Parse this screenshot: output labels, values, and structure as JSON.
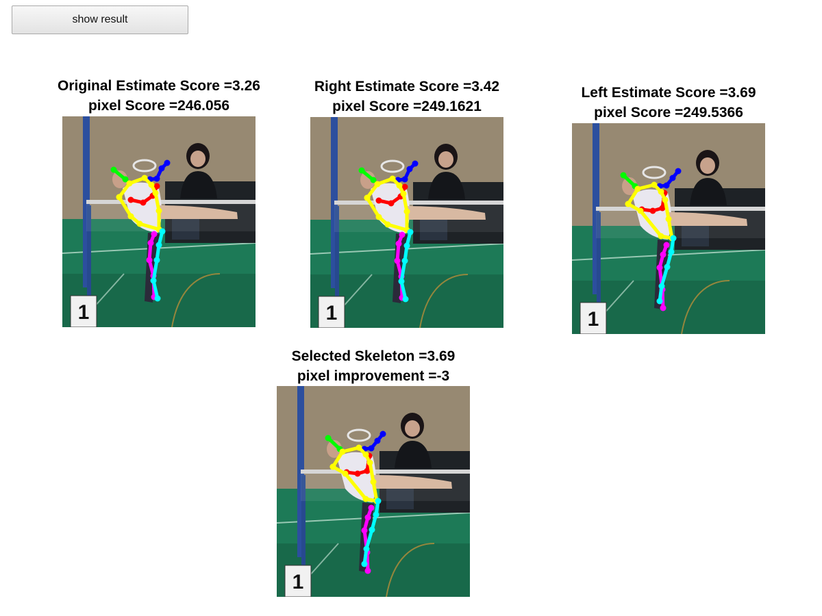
{
  "toolbar": {
    "show_result_label": "show result"
  },
  "panels": [
    {
      "key": "original",
      "line1": "Original Estimate Score =3.26",
      "line2": "pixel Score =246.056",
      "pose": "A"
    },
    {
      "key": "right",
      "line1": "Right Estimate Score =3.42",
      "line2": "pixel Score =249.1621",
      "pose": "A"
    },
    {
      "key": "left",
      "line1": "Left Estimate Score =3.69",
      "line2": "pixel Score =249.5366",
      "pose": "B"
    },
    {
      "key": "selected",
      "line1": "Selected Skeleton =3.69",
      "line2": "pixel improvement =-3",
      "pose": "B"
    }
  ],
  "skeleton_colors": {
    "head": "#00ff00",
    "left_arm": "#0000ff",
    "right_arm": "#ff0000",
    "torso": "#ffff00",
    "left_leg": "#ff00ff",
    "right_leg": "#00ffff"
  },
  "photo_badge": "1"
}
